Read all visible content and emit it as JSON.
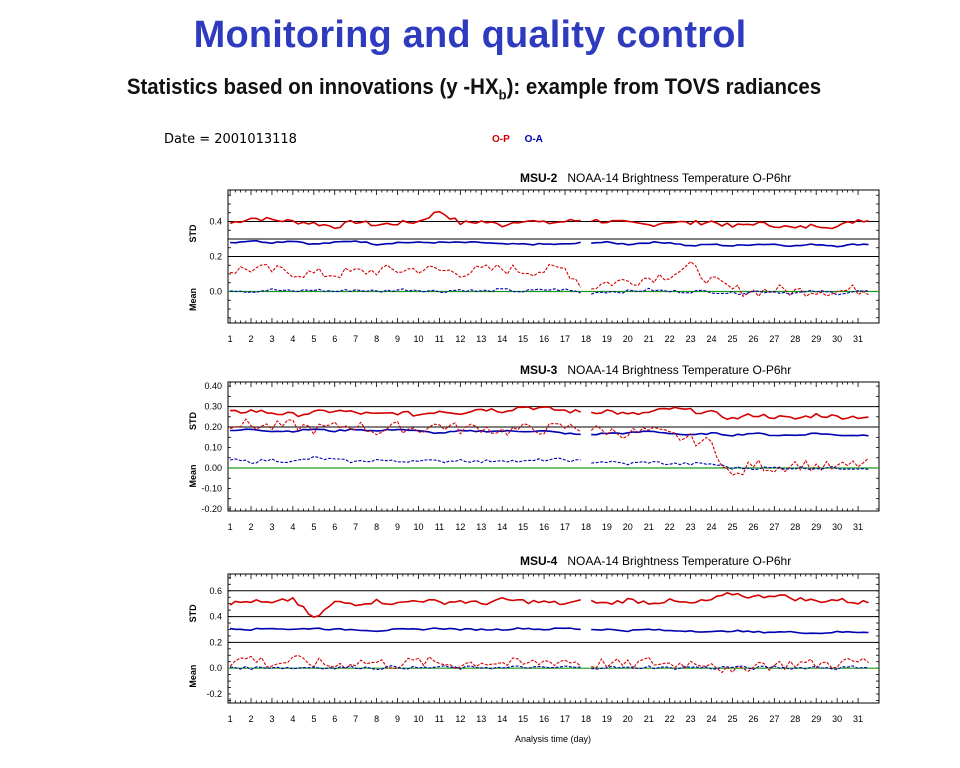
{
  "slide": {
    "title": "Monitoring and quality control",
    "subtitle_main": "Statistics based on innovations (y -HX",
    "subtitle_sub": "b",
    "subtitle_tail": "): example from TOVS radiances"
  },
  "date_label": "Date = 2001013118",
  "legend": [
    {
      "name": "O-P",
      "color": "#d40000"
    },
    {
      "name": "O-A",
      "color": "#0000b0"
    }
  ],
  "xlabel": "Analysis time (day)",
  "chart_data": [
    {
      "type": "line",
      "channel": "MSU-2",
      "title_rest": "NOAA-14 Brightness Temperature  O-P6hr",
      "x": [
        1,
        2,
        3,
        4,
        5,
        6,
        7,
        8,
        9,
        10,
        11,
        12,
        13,
        14,
        15,
        16,
        17,
        18,
        19,
        20,
        21,
        22,
        23,
        24,
        25,
        26,
        27,
        28,
        29,
        30,
        31
      ],
      "x_ticks": [
        "1",
        "2",
        "3",
        "4",
        "5",
        "6",
        "7",
        "8",
        "9",
        "10",
        "11",
        "12",
        "13",
        "14",
        "15",
        "16",
        "17",
        "18",
        "19",
        "20",
        "21",
        "22",
        "23",
        "24",
        "25",
        "26",
        "27",
        "28",
        "29",
        "30",
        "31"
      ],
      "std_label": "STD",
      "mean_label": "Mean",
      "ylim": [
        -0.18,
        0.58
      ],
      "yticks": [
        "0.4",
        "0.2",
        "0.0"
      ],
      "ytick_values": [
        0.4,
        0.2,
        0.0
      ],
      "ref_lines": [
        0.4,
        0.3,
        0.2
      ],
      "series": [
        {
          "name": "O-P",
          "stat": "STD",
          "values": [
            0.39,
            0.42,
            0.41,
            0.4,
            0.39,
            0.37,
            0.4,
            0.38,
            0.39,
            0.4,
            0.46,
            0.39,
            0.4,
            0.38,
            0.41,
            0.39,
            0.4,
            0.41,
            0.4,
            0.39,
            0.38,
            0.4,
            0.39,
            0.4,
            0.37,
            0.39,
            0.38,
            0.36,
            0.38,
            0.37,
            0.41
          ]
        },
        {
          "name": "O-A",
          "stat": "STD",
          "values": [
            0.28,
            0.29,
            0.28,
            0.29,
            0.27,
            0.28,
            0.29,
            0.27,
            0.28,
            0.28,
            0.28,
            0.28,
            0.28,
            0.27,
            0.27,
            0.27,
            0.27,
            0.28,
            0.28,
            0.27,
            0.28,
            0.28,
            0.26,
            0.27,
            0.26,
            0.27,
            0.27,
            0.26,
            0.27,
            0.26,
            0.27
          ]
        },
        {
          "name": "O-P",
          "stat": "Mean",
          "values": [
            0.12,
            0.13,
            0.12,
            0.11,
            0.1,
            0.1,
            0.11,
            0.12,
            0.12,
            0.13,
            0.12,
            0.11,
            0.12,
            0.13,
            0.12,
            0.12,
            0.13,
            0.02,
            0.05,
            0.06,
            0.08,
            0.1,
            0.14,
            0.06,
            0.01,
            0.0,
            0.01,
            0.0,
            0.01,
            0.0,
            0.01
          ]
        },
        {
          "name": "O-A",
          "stat": "Mean",
          "values": [
            0.01,
            0.0,
            0.01,
            0.0,
            0.01,
            0.0,
            0.01,
            0.0,
            0.01,
            0.01,
            0.0,
            0.01,
            0.0,
            0.01,
            0.0,
            0.01,
            0.01,
            -0.01,
            0.0,
            0.0,
            0.01,
            0.0,
            0.0,
            0.0,
            -0.01,
            0.0,
            0.0,
            -0.01,
            0.0,
            -0.01,
            0.0
          ]
        }
      ]
    },
    {
      "type": "line",
      "channel": "MSU-3",
      "title_rest": "NOAA-14 Brightness Temperature  O-P6hr",
      "x": [
        1,
        2,
        3,
        4,
        5,
        6,
        7,
        8,
        9,
        10,
        11,
        12,
        13,
        14,
        15,
        16,
        17,
        18,
        19,
        20,
        21,
        22,
        23,
        24,
        25,
        26,
        27,
        28,
        29,
        30,
        31
      ],
      "x_ticks": [
        "1",
        "2",
        "3",
        "4",
        "5",
        "6",
        "7",
        "8",
        "9",
        "10",
        "11",
        "12",
        "13",
        "14",
        "15",
        "16",
        "17",
        "18",
        "19",
        "20",
        "21",
        "22",
        "23",
        "24",
        "25",
        "26",
        "27",
        "28",
        "29",
        "30",
        "31"
      ],
      "std_label": "STD",
      "mean_label": "Mean",
      "ylim": [
        -0.21,
        0.42
      ],
      "yticks": [
        "0.40",
        "0.30",
        "0.20",
        "0.10",
        "0.00",
        "-0.10",
        "-0.20"
      ],
      "ytick_values": [
        0.4,
        0.3,
        0.2,
        0.1,
        0.0,
        -0.1,
        -0.2
      ],
      "ref_lines": [
        0.3,
        0.2
      ],
      "series": [
        {
          "name": "O-P",
          "stat": "STD",
          "values": [
            0.27,
            0.28,
            0.27,
            0.26,
            0.27,
            0.28,
            0.27,
            0.26,
            0.27,
            0.26,
            0.28,
            0.27,
            0.29,
            0.28,
            0.3,
            0.29,
            0.28,
            0.27,
            0.28,
            0.26,
            0.27,
            0.29,
            0.28,
            0.27,
            0.24,
            0.26,
            0.25,
            0.24,
            0.26,
            0.25,
            0.25
          ]
        },
        {
          "name": "O-A",
          "stat": "STD",
          "values": [
            0.18,
            0.19,
            0.18,
            0.18,
            0.19,
            0.18,
            0.19,
            0.18,
            0.19,
            0.18,
            0.17,
            0.18,
            0.18,
            0.18,
            0.18,
            0.18,
            0.17,
            0.16,
            0.17,
            0.17,
            0.18,
            0.17,
            0.16,
            0.17,
            0.16,
            0.17,
            0.16,
            0.16,
            0.17,
            0.16,
            0.16
          ]
        },
        {
          "name": "O-P",
          "stat": "Mean",
          "values": [
            0.22,
            0.21,
            0.2,
            0.21,
            0.19,
            0.2,
            0.21,
            0.18,
            0.2,
            0.19,
            0.21,
            0.19,
            0.2,
            0.18,
            0.19,
            0.19,
            0.2,
            0.19,
            0.18,
            0.17,
            0.18,
            0.16,
            0.14,
            0.12,
            -0.05,
            0.02,
            0.0,
            0.02,
            0.01,
            0.0,
            0.02
          ]
        },
        {
          "name": "O-A",
          "stat": "Mean",
          "values": [
            0.04,
            0.03,
            0.04,
            0.03,
            0.05,
            0.04,
            0.03,
            0.04,
            0.03,
            0.04,
            0.03,
            0.04,
            0.03,
            0.04,
            0.03,
            0.04,
            0.04,
            0.03,
            0.03,
            0.02,
            0.03,
            0.02,
            0.02,
            0.02,
            0.0,
            0.0,
            0.0,
            0.0,
            0.0,
            0.0,
            0.0
          ]
        }
      ]
    },
    {
      "type": "line",
      "channel": "MSU-4",
      "title_rest": "NOAA-14 Brightness Temperature  O-P6hr",
      "x": [
        1,
        2,
        3,
        4,
        5,
        6,
        7,
        8,
        9,
        10,
        11,
        12,
        13,
        14,
        15,
        16,
        17,
        18,
        19,
        20,
        21,
        22,
        23,
        24,
        25,
        26,
        27,
        28,
        29,
        30,
        31
      ],
      "x_ticks": [
        "1",
        "2",
        "3",
        "4",
        "5",
        "6",
        "7",
        "8",
        "9",
        "10",
        "11",
        "12",
        "13",
        "14",
        "15",
        "16",
        "17",
        "18",
        "19",
        "20",
        "21",
        "22",
        "23",
        "24",
        "25",
        "26",
        "27",
        "28",
        "29",
        "30",
        "31"
      ],
      "std_label": "STD",
      "mean_label": "Mean",
      "ylim": [
        -0.27,
        0.73
      ],
      "yticks": [
        "0.6",
        "0.4",
        "0.2",
        "0.0",
        "-0.2"
      ],
      "ytick_values": [
        0.6,
        0.4,
        0.2,
        0.0,
        -0.2
      ],
      "ref_lines": [
        0.6,
        0.4,
        0.2
      ],
      "series": [
        {
          "name": "O-P",
          "stat": "STD",
          "values": [
            0.5,
            0.52,
            0.5,
            0.54,
            0.38,
            0.51,
            0.5,
            0.52,
            0.5,
            0.53,
            0.51,
            0.52,
            0.5,
            0.53,
            0.52,
            0.51,
            0.5,
            0.52,
            0.5,
            0.53,
            0.51,
            0.52,
            0.5,
            0.53,
            0.58,
            0.55,
            0.57,
            0.54,
            0.52,
            0.53,
            0.51
          ]
        },
        {
          "name": "O-A",
          "stat": "STD",
          "values": [
            0.31,
            0.3,
            0.31,
            0.3,
            0.31,
            0.3,
            0.3,
            0.29,
            0.3,
            0.3,
            0.31,
            0.3,
            0.3,
            0.3,
            0.31,
            0.3,
            0.31,
            0.3,
            0.3,
            0.29,
            0.3,
            0.29,
            0.29,
            0.28,
            0.29,
            0.28,
            0.28,
            0.28,
            0.27,
            0.28,
            0.28
          ]
        },
        {
          "name": "O-P",
          "stat": "Mean",
          "values": [
            0.05,
            0.08,
            0.03,
            0.06,
            0.04,
            0.02,
            0.05,
            0.04,
            0.03,
            0.05,
            0.04,
            0.03,
            0.05,
            0.04,
            0.03,
            0.05,
            0.06,
            0.03,
            0.04,
            0.02,
            0.05,
            0.03,
            0.04,
            0.05,
            -0.05,
            0.04,
            0.02,
            0.04,
            0.03,
            0.04,
            0.05
          ]
        },
        {
          "name": "O-A",
          "stat": "Mean",
          "values": [
            0.01,
            0.0,
            0.01,
            0.0,
            0.01,
            0.0,
            0.01,
            0.0,
            0.01,
            0.0,
            0.01,
            0.0,
            0.01,
            0.0,
            0.01,
            0.0,
            0.01,
            0.0,
            0.01,
            0.0,
            0.01,
            0.0,
            0.01,
            0.0,
            0.01,
            0.0,
            0.01,
            0.0,
            0.01,
            0.0,
            0.01
          ]
        }
      ]
    }
  ]
}
